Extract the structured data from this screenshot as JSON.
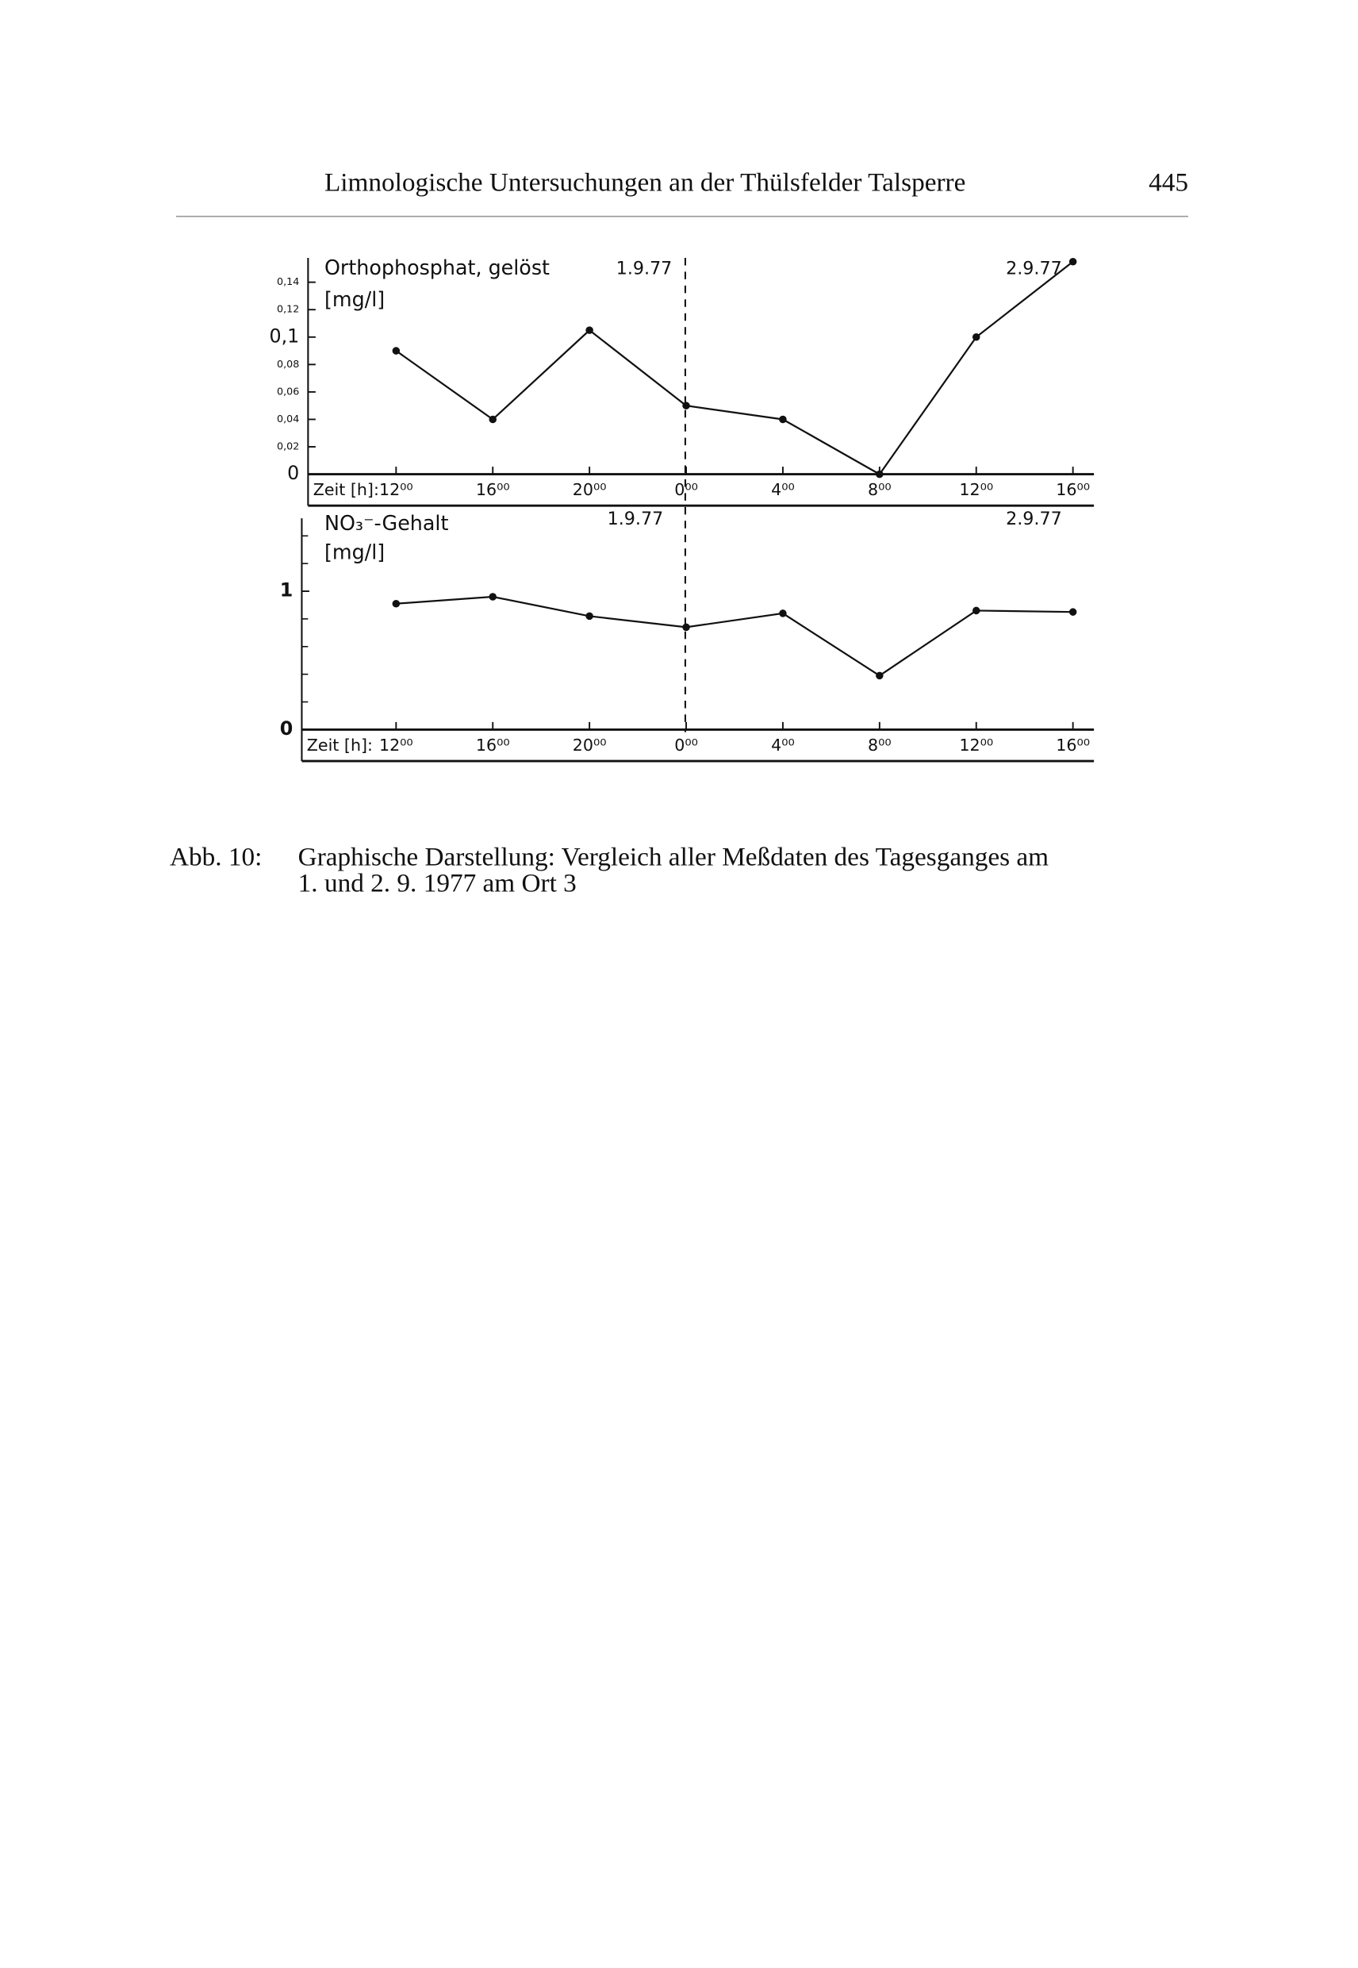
{
  "header": {
    "title": "Limnologische Untersuchungen an der Thülsfelder Talsperre",
    "page": "445"
  },
  "chart_data": [
    {
      "type": "line",
      "title": "Orthophosphat, gelöst",
      "ylabel": "[mg/l]",
      "xlabel": "Zeit [h]:",
      "categories": [
        "12⁰⁰",
        "16⁰⁰",
        "20⁰⁰",
        "0⁰⁰",
        "4⁰⁰",
        "8⁰⁰",
        "12⁰⁰",
        "16⁰⁰"
      ],
      "values": [
        0.09,
        0.04,
        0.105,
        0.05,
        0.04,
        0,
        0.1,
        0.155
      ],
      "color": "#111111",
      "ylim": [
        0,
        0.155
      ],
      "yticks": [
        0,
        {
          "value": 0.02,
          "label": "0,02"
        },
        {
          "value": 0.04,
          "label": "0,04"
        },
        {
          "value": 0.06,
          "label": "0,06"
        },
        {
          "value": 0.08,
          "label": "0,08"
        },
        {
          "value": 0.1,
          "label": "0,1"
        },
        {
          "value": 0.12,
          "label": "0,12"
        },
        {
          "value": 0.14,
          "label": "0,14"
        }
      ],
      "annotations": [
        "1.9.77",
        "2.9.77"
      ]
    },
    {
      "type": "line",
      "title": "NO₃⁻-Gehalt",
      "ylabel": "[mg/l]",
      "xlabel": "Zeit [h]:",
      "categories": [
        "12⁰⁰",
        "16⁰⁰",
        "20⁰⁰",
        "0⁰⁰",
        "4⁰⁰",
        "8⁰⁰",
        "12⁰⁰",
        "16⁰⁰"
      ],
      "values": [
        0.91,
        0.96,
        0.82,
        0.74,
        0.84,
        0.39,
        0.86,
        0.85
      ],
      "color": "#111111",
      "ylim": [
        0,
        1.5
      ],
      "yticks": [
        0,
        1
      ],
      "yminor": [
        0.2,
        0.4,
        0.6,
        0.8,
        1.2,
        1.4
      ],
      "annotations": [
        "1.9.77",
        "2.9.77"
      ]
    }
  ],
  "caption": {
    "label": "Abb. 10:",
    "lines": [
      "Graphische Darstellung: Vergleich aller Meßdaten des Tagesganges am",
      "1. und 2. 9. 1977 am Ort 3"
    ]
  }
}
